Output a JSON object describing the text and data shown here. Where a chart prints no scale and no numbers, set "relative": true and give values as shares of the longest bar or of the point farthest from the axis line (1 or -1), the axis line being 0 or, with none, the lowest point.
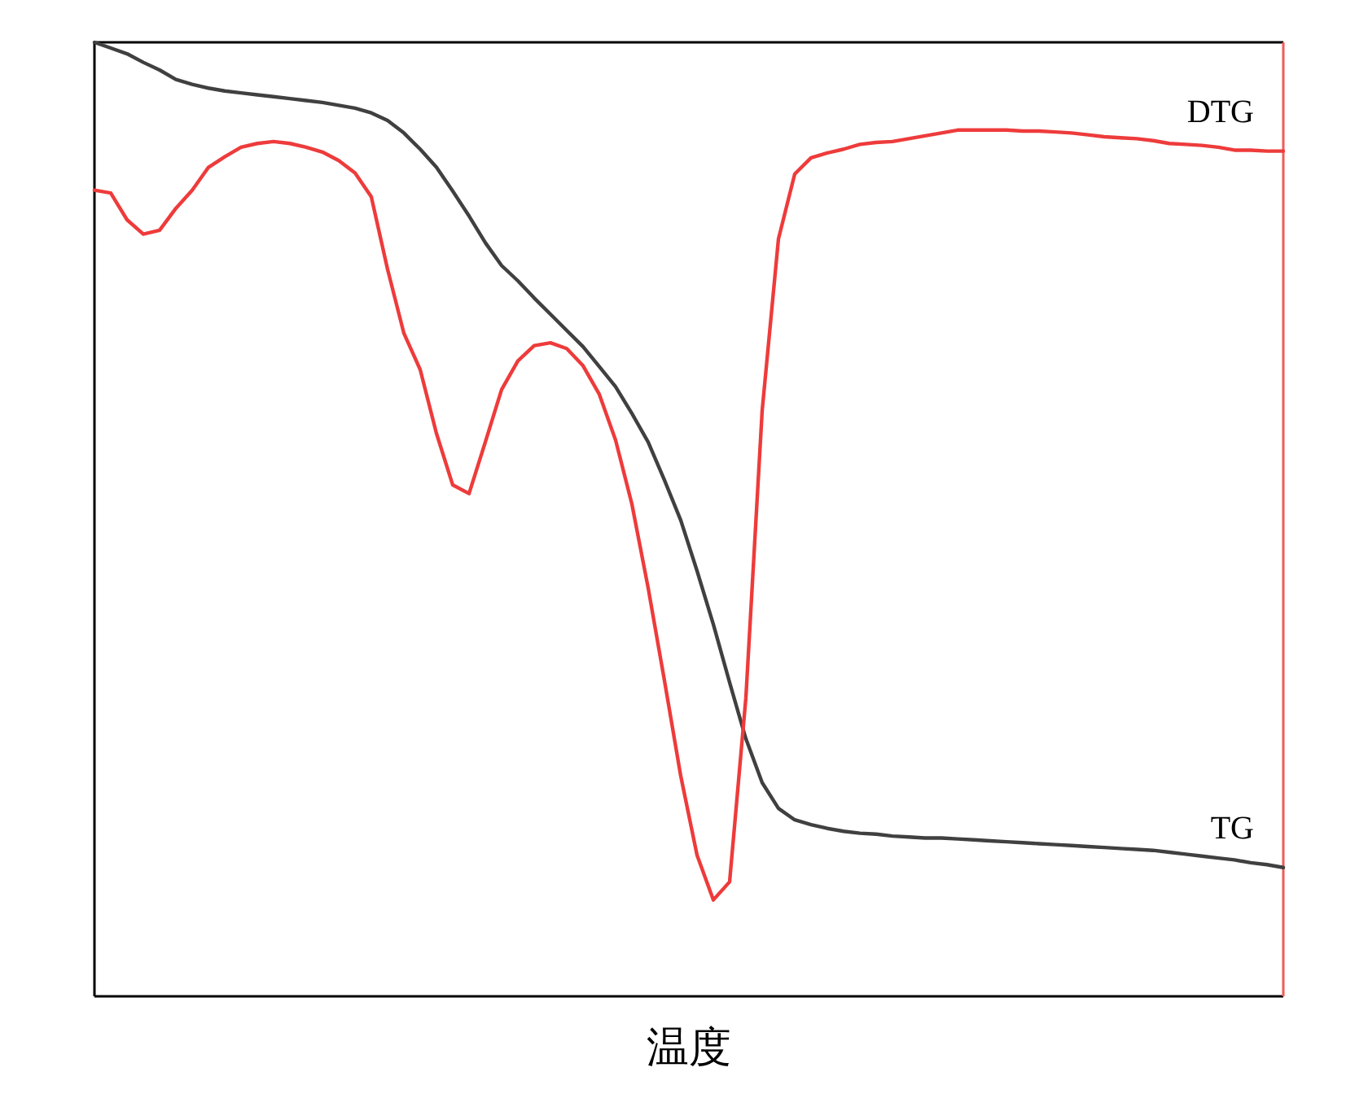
{
  "chart_data": {
    "type": "line",
    "relative": true,
    "xlabel": "温度",
    "categories": [
      null,
      null,
      null,
      null,
      null,
      null,
      null,
      null,
      null,
      null,
      null,
      null,
      null,
      null,
      null,
      null,
      null,
      null,
      null,
      null,
      null,
      null,
      null,
      null,
      null,
      null,
      null,
      null,
      null,
      null,
      null,
      null,
      null,
      null,
      null,
      null,
      null,
      null,
      null,
      null,
      null,
      null,
      null,
      null,
      null,
      null,
      null,
      null,
      null,
      null,
      null,
      null,
      null,
      null,
      null,
      null,
      null,
      null,
      null,
      null,
      null,
      null,
      null,
      null,
      null,
      null,
      null,
      null,
      null,
      null,
      null,
      null,
      null,
      null
    ],
    "series": [
      {
        "name": "TG",
        "color": "#404040",
        "values": [
          1.0,
          0.994,
          0.988,
          0.979,
          0.971,
          0.961,
          0.956,
          0.952,
          0.949,
          0.947,
          0.945,
          0.943,
          0.941,
          0.939,
          0.937,
          0.934,
          0.931,
          0.926,
          0.918,
          0.905,
          0.888,
          0.869,
          0.844,
          0.818,
          0.79,
          0.766,
          0.75,
          0.732,
          0.715,
          0.698,
          0.681,
          0.66,
          0.639,
          0.611,
          0.581,
          0.541,
          0.499,
          0.446,
          0.39,
          0.329,
          0.27,
          0.224,
          0.197,
          0.185,
          0.18,
          0.176,
          0.173,
          0.171,
          0.17,
          0.168,
          0.167,
          0.166,
          0.166,
          0.165,
          0.164,
          0.163,
          0.162,
          0.161,
          0.16,
          0.159,
          0.158,
          0.157,
          0.156,
          0.155,
          0.154,
          0.153,
          0.151,
          0.149,
          0.147,
          0.145,
          0.143,
          0.14,
          0.138,
          0.135
        ]
      },
      {
        "name": "DTG",
        "color": "#ee3b3b",
        "values": [
          0.845,
          0.842,
          0.814,
          0.799,
          0.803,
          0.826,
          0.845,
          0.869,
          0.88,
          0.89,
          0.894,
          0.896,
          0.894,
          0.89,
          0.885,
          0.876,
          0.863,
          0.838,
          0.762,
          0.695,
          0.657,
          0.59,
          0.536,
          0.527,
          0.581,
          0.636,
          0.666,
          0.682,
          0.685,
          0.679,
          0.661,
          0.631,
          0.583,
          0.516,
          0.428,
          0.331,
          0.231,
          0.148,
          0.101,
          0.12,
          0.313,
          0.614,
          0.794,
          0.862,
          0.879,
          0.884,
          0.888,
          0.893,
          0.895,
          0.896,
          0.899,
          0.902,
          0.905,
          0.908,
          0.908,
          0.908,
          0.908,
          0.907,
          0.907,
          0.906,
          0.905,
          0.903,
          0.901,
          0.9,
          0.899,
          0.897,
          0.894,
          0.893,
          0.892,
          0.89,
          0.887,
          0.887,
          0.886,
          0.886
        ]
      }
    ]
  }
}
